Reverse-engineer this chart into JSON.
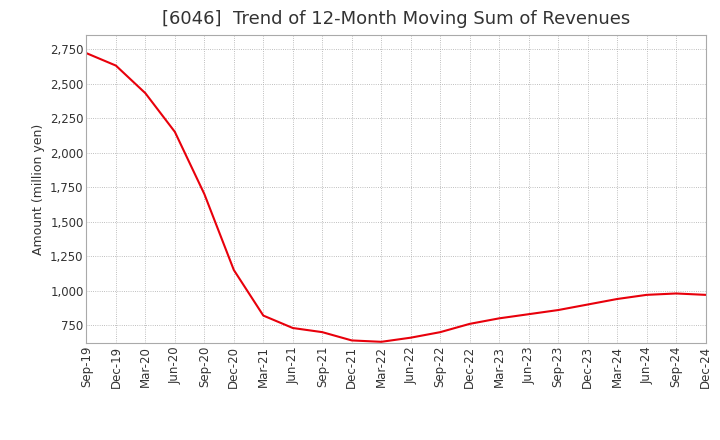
{
  "title": "[6046]  Trend of 12-Month Moving Sum of Revenues",
  "ylabel": "Amount (million yen)",
  "x_labels": [
    "Sep-19",
    "Dec-19",
    "Mar-20",
    "Jun-20",
    "Sep-20",
    "Dec-20",
    "Mar-21",
    "Jun-21",
    "Sep-21",
    "Dec-21",
    "Mar-22",
    "Jun-22",
    "Sep-22",
    "Dec-22",
    "Mar-23",
    "Jun-23",
    "Sep-23",
    "Dec-23",
    "Mar-24",
    "Jun-24",
    "Sep-24",
    "Dec-24"
  ],
  "values": [
    2720,
    2630,
    2430,
    2150,
    1700,
    1150,
    820,
    730,
    700,
    640,
    630,
    660,
    700,
    760,
    800,
    830,
    860,
    900,
    940,
    970,
    980,
    970
  ],
  "line_color": "#e8000b",
  "background_color": "#ffffff",
  "grid_color": "#aaaaaa",
  "ylim": [
    620,
    2850
  ],
  "yticks": [
    750,
    1000,
    1250,
    1500,
    1750,
    2000,
    2250,
    2500,
    2750
  ],
  "title_fontsize": 13,
  "label_fontsize": 9,
  "tick_fontsize": 8.5
}
